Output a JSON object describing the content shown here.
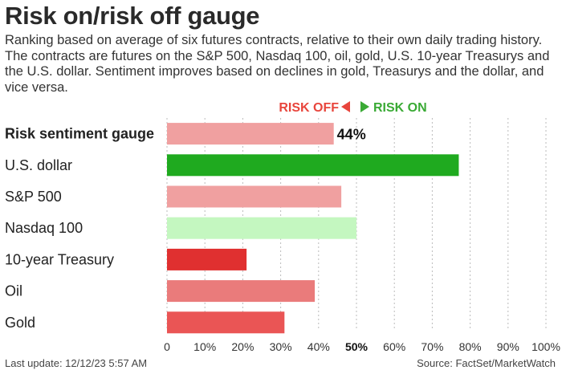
{
  "header": {
    "title": "Risk on/risk off gauge",
    "subtitle": "Ranking based on average of six futures contracts, relative to their own daily trading history. The contracts are futures on the S&P 500, Nasdaq 100, oil, gold, U.S. 10-year Treasurys and the U.S. dollar. Sentiment improves based on declines in gold, Treasurys and the dollar, and vice versa."
  },
  "indicator": {
    "risk_off_label": "RISK OFF",
    "risk_on_label": "RISK ON",
    "risk_off_color": "#e8453c",
    "risk_on_color": "#3aaa35"
  },
  "footer": {
    "last_update": "Last update: 12/12/23 5:57 AM",
    "source": "Source: FactSet/MarketWatch"
  },
  "chart_data": {
    "type": "bar",
    "orientation": "horizontal",
    "categories": [
      "Risk sentiment gauge",
      "U.S. dollar",
      "S&P 500",
      "Nasdaq 100",
      "10-year Treasury",
      "Oil",
      "Gold"
    ],
    "values": [
      44,
      77,
      46,
      50,
      21,
      39,
      31
    ],
    "colors": [
      "#f0a0a0",
      "#1faa1f",
      "#f0a0a0",
      "#c4f7c0",
      "#e03030",
      "#ea7b7b",
      "#ea5555"
    ],
    "bold_categories": [
      "Risk sentiment gauge"
    ],
    "value_labels": [
      {
        "category": "Risk sentiment gauge",
        "text": "44%"
      }
    ],
    "xlim": [
      0,
      100
    ],
    "xticks": [
      "0",
      "10%",
      "20%",
      "30%",
      "40%",
      "50%",
      "60%",
      "70%",
      "80%",
      "90%",
      "100%"
    ],
    "highlight_tick": "50%",
    "grid": "vertical-dotted"
  }
}
